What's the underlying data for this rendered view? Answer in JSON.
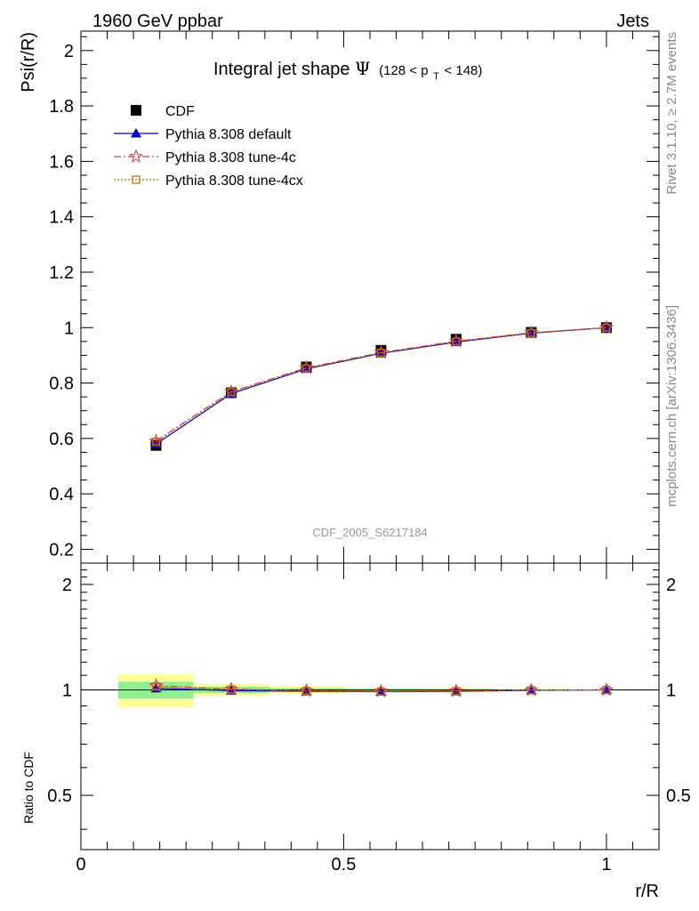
{
  "header": {
    "left": "1960 GeV ppbar",
    "right": "Jets"
  },
  "side_labels": {
    "rivet": "Rivet 3.1.10, ≥ 2.7M events",
    "mcplots": "mcplots.cern.ch [arXiv:1306.3436]"
  },
  "chart_data": {
    "type": "line",
    "title_main": "Integral jet shape",
    "title_symbol": "Ψ",
    "title_range_prefix": "(128 < p",
    "title_range_sub": "T",
    "title_range_suffix": " < 148)",
    "analysis_tag": "CDF_2005_S6217184",
    "ylabel": "Psi(r/R)",
    "ratio_ylabel": "Ratio to CDF",
    "xlabel": "r/R",
    "xlim": [
      0,
      1.1
    ],
    "ylim": [
      0.15,
      2.07
    ],
    "ratio_ylim": [
      0.35,
      2.3
    ],
    "main_yticks": [
      0.2,
      0.4,
      0.6,
      0.8,
      1,
      1.2,
      1.4,
      1.6,
      1.8,
      2
    ],
    "ratio_yticks": [
      0.5,
      1,
      2
    ],
    "xticks": [
      0,
      0.5,
      1
    ],
    "x": [
      0.143,
      0.286,
      0.429,
      0.571,
      0.714,
      0.857,
      1.0
    ],
    "x_edges": [
      0.071,
      0.214,
      0.357,
      0.5,
      0.643,
      0.786,
      0.929,
      1.071
    ],
    "series": [
      {
        "name": "CDF",
        "color": "#000000",
        "marker": "square",
        "values": [
          0.575,
          0.765,
          0.858,
          0.918,
          0.958,
          0.983,
          1.0
        ],
        "ratio": [
          1.0,
          1.0,
          1.0,
          1.0,
          1.0,
          1.0,
          1.0
        ]
      },
      {
        "name": "Pythia 8.308 default",
        "color": "#0000cc",
        "marker": "triangle",
        "dash": "",
        "values": [
          0.58,
          0.762,
          0.851,
          0.907,
          0.948,
          0.98,
          1.0
        ],
        "ratio": [
          1.01,
          0.995,
          0.99,
          0.988,
          0.99,
          0.997,
          1.0
        ]
      },
      {
        "name": "Pythia 8.308 tune-4c",
        "color": "#e04040",
        "marker": "star",
        "dash": "8,3,2,3",
        "values": [
          0.591,
          0.769,
          0.855,
          0.91,
          0.951,
          0.982,
          1.0
        ],
        "ratio": [
          1.028,
          1.005,
          0.995,
          0.991,
          0.993,
          0.999,
          1.0
        ]
      },
      {
        "name": "Pythia 8.308 tune-4cx",
        "color": "#cc6600",
        "marker": "open-square",
        "dash": "2,2",
        "values": [
          0.588,
          0.767,
          0.853,
          0.909,
          0.95,
          0.981,
          1.0
        ],
        "ratio": [
          1.022,
          1.002,
          0.993,
          0.99,
          0.992,
          0.998,
          1.0
        ]
      }
    ],
    "uncertainty_bands": {
      "stat_color": "#90ee90",
      "syst_color": "#ffff99",
      "green_halfwidth": [
        0.055,
        0.02,
        0.012,
        0.008,
        0.006,
        0.004,
        0.002
      ],
      "yellow_halfwidth": [
        0.11,
        0.04,
        0.025,
        0.015,
        0.01,
        0.006,
        0.003
      ]
    },
    "legend_placement": "top-left"
  }
}
